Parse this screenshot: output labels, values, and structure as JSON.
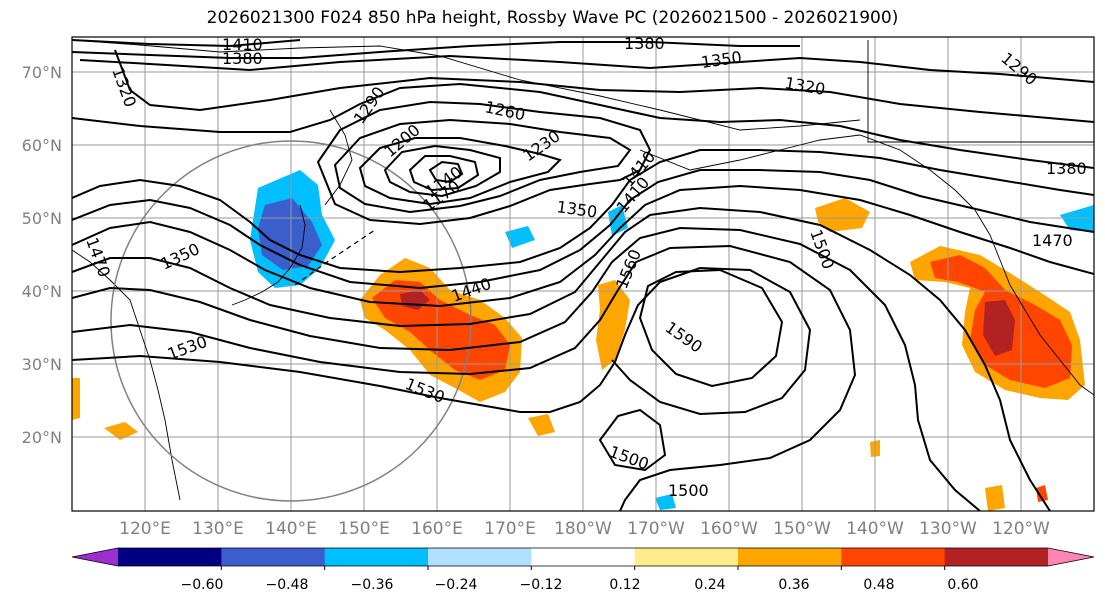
{
  "title": "2026021300 F024 850 hPa height, Rossby Wave PC (2026021500 - 2026021900)",
  "lat_labels": [
    "70°N",
    "60°N",
    "50°N",
    "40°N",
    "30°N",
    "20°N"
  ],
  "lon_labels": [
    "120°E",
    "130°E",
    "140°E",
    "150°E",
    "160°E",
    "170°E",
    "180°W",
    "170°W",
    "160°W",
    "150°W",
    "140°W",
    "130°W",
    "120°W"
  ],
  "contour_labels": [
    "1410",
    "1380",
    "1320",
    "1380",
    "1350",
    "1320",
    "1290",
    "1290",
    "1260",
    "1230",
    "1200",
    "1170",
    "1140",
    "1350",
    "1410",
    "1350",
    "1470",
    "1440",
    "1560",
    "1590",
    "1530",
    "1530",
    "1500",
    "1500",
    "1500",
    "1380",
    "1470",
    "1410"
  ],
  "colorbar": {
    "ticks": [
      "−0.60",
      "−0.48",
      "−0.36",
      "−0.24",
      "−0.12",
      "0.12",
      "0.24",
      "0.36",
      "0.48",
      "0.60"
    ],
    "colors": [
      "#9b30d0",
      "#000080",
      "#3a5fcd",
      "#00bfff",
      "#b0e0ff",
      "#ffffff",
      "#ffec8b",
      "#ffa500",
      "#ff4500",
      "#b22222",
      "#ff85b4"
    ]
  }
}
